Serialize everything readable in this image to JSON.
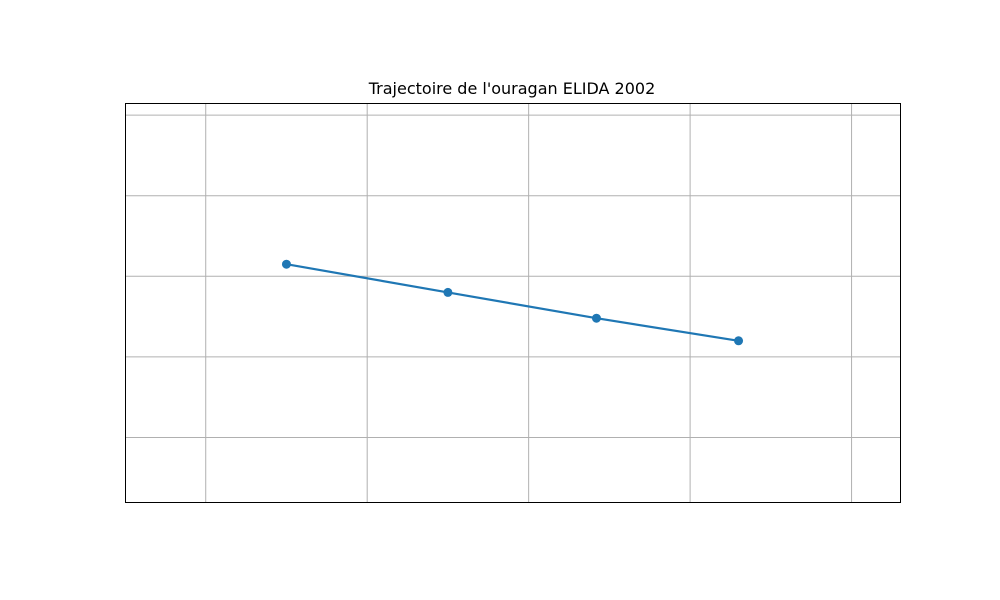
{
  "chart_data": {
    "type": "line",
    "title": "Trajectoire de l'ouragan ELIDA 2002",
    "xlabel": "",
    "ylabel": "",
    "x_ticks": [
      -2,
      -1,
      0,
      1,
      2
    ],
    "y_ticks": [
      2,
      1,
      0,
      -1,
      -2
    ],
    "xlim": [
      -2.5,
      2.3
    ],
    "ylim": [
      -2.8,
      2.15
    ],
    "grid": true,
    "series": [
      {
        "color": "#1f77b4",
        "marker": "circle",
        "x": [
          -1.5,
          -0.5,
          0.42,
          1.3
        ],
        "y": [
          0.15,
          -0.2,
          -0.52,
          -0.8
        ]
      }
    ]
  }
}
